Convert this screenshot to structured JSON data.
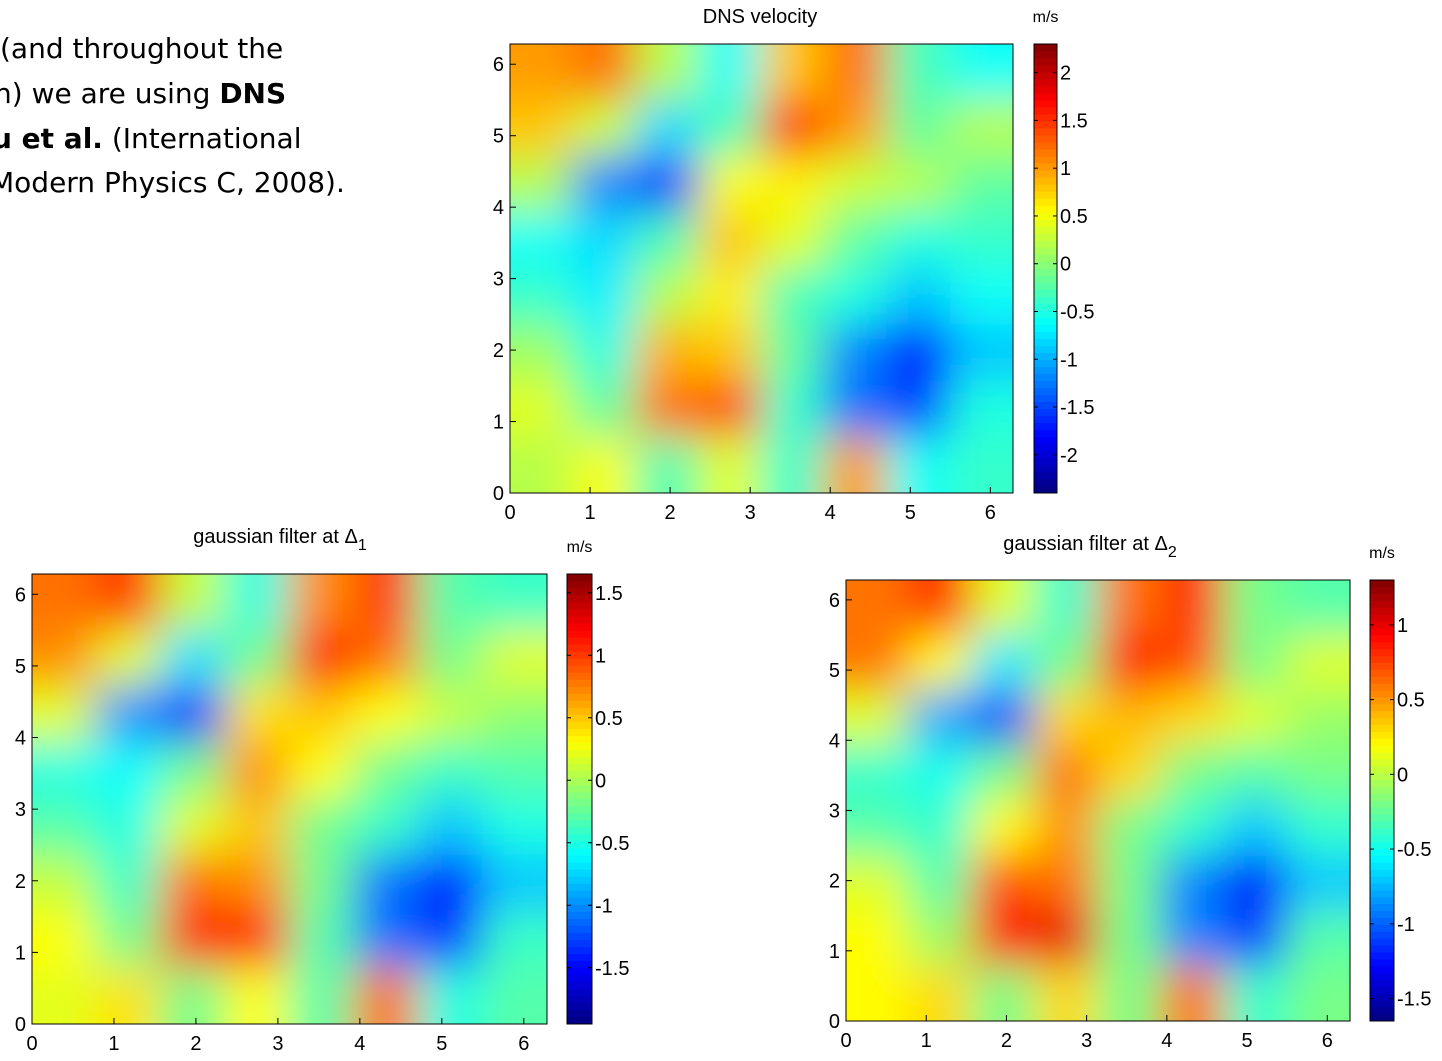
{
  "slide_text": [
    [
      {
        "text": "(and throughout the",
        "bold": false
      }
    ],
    [
      {
        "text": "n) we are using ",
        "bold": false
      },
      {
        "text": "DNS",
        "bold": true
      }
    ],
    [
      {
        "text": "u et al.",
        "bold": true
      },
      {
        "text": " (International",
        "bold": false
      }
    ],
    [
      {
        "text": "Modern Physics C, 2008).",
        "bold": false
      }
    ]
  ],
  "chart_data": [
    {
      "type": "heatmap",
      "title": "DNS velocity",
      "colorbar_label": "m/s",
      "xlim": [
        0,
        6.2832
      ],
      "ylim": [
        0,
        6.2832
      ],
      "xticks": [
        0,
        1,
        2,
        3,
        4,
        5,
        6
      ],
      "yticks": [
        0,
        1,
        2,
        3,
        4,
        5,
        6
      ],
      "clim": [
        -2.4,
        2.3
      ],
      "cticks": [
        -2,
        -1.5,
        -1,
        -0.5,
        0,
        0.5,
        1,
        1.5,
        2
      ],
      "colormap": "jet",
      "z": [
        [
          1.0,
          1.2,
          0.2,
          -0.6,
          0.8,
          1.2,
          -0.3,
          -0.6
        ],
        [
          0.8,
          0.3,
          -0.8,
          -0.3,
          1.5,
          1.0,
          -0.2,
          0.2
        ],
        [
          0.2,
          -1.2,
          -1.6,
          0.5,
          0.6,
          0.3,
          0.2,
          -0.2
        ],
        [
          -0.6,
          -0.8,
          -0.3,
          0.8,
          0.4,
          -0.2,
          -0.5,
          -0.4
        ],
        [
          -0.4,
          -0.7,
          0.2,
          0.6,
          -0.3,
          -0.5,
          -0.9,
          -0.6
        ],
        [
          0.1,
          -0.5,
          0.9,
          0.8,
          -0.2,
          -1.2,
          -1.8,
          -0.9
        ],
        [
          0.4,
          -0.2,
          1.2,
          1.4,
          -0.4,
          -1.3,
          -1.5,
          -0.5
        ],
        [
          0.2,
          0.5,
          -0.3,
          0.4,
          -0.4,
          1.0,
          -0.6,
          -0.4
        ]
      ]
    },
    {
      "type": "heatmap",
      "title": "gaussian filter at Δ",
      "title_subscript": "1",
      "colorbar_label": "m/s",
      "xlim": [
        0,
        6.2832
      ],
      "ylim": [
        0,
        6.2832
      ],
      "xticks": [
        0,
        1,
        2,
        3,
        4,
        5,
        6
      ],
      "yticks": [
        0,
        1,
        2,
        3,
        4,
        5,
        6
      ],
      "clim": [
        -1.95,
        1.65
      ],
      "cticks": [
        -1.5,
        -1,
        -0.5,
        0,
        0.5,
        1,
        1.5
      ],
      "colormap": "jet",
      "z": [
        [
          0.8,
          1.0,
          0.1,
          -0.5,
          0.7,
          1.0,
          -0.3,
          -0.4
        ],
        [
          0.7,
          0.2,
          -0.7,
          -0.2,
          1.2,
          0.8,
          -0.2,
          0.2
        ],
        [
          0.2,
          -1.0,
          -1.4,
          0.4,
          0.5,
          0.3,
          0.1,
          -0.1
        ],
        [
          -0.5,
          -0.6,
          -0.2,
          0.7,
          0.3,
          -0.2,
          -0.4,
          -0.3
        ],
        [
          -0.3,
          -0.5,
          0.2,
          0.5,
          -0.2,
          -0.4,
          -0.8,
          -0.5
        ],
        [
          0.1,
          -0.4,
          0.8,
          0.7,
          -0.2,
          -1.1,
          -1.5,
          -0.8
        ],
        [
          0.3,
          -0.2,
          1.1,
          1.2,
          -0.3,
          -1.1,
          -1.3,
          -0.4
        ],
        [
          0.2,
          0.4,
          -0.2,
          0.3,
          -0.3,
          0.8,
          -0.5,
          -0.3
        ]
      ]
    },
    {
      "type": "heatmap",
      "title": "gaussian filter at Δ",
      "title_subscript": "2",
      "colorbar_label": "m/s",
      "xlim": [
        0,
        6.2832
      ],
      "ylim": [
        0,
        6.2832
      ],
      "xticks": [
        0,
        1,
        2,
        3,
        4,
        5,
        6
      ],
      "yticks": [
        0,
        1,
        2,
        3,
        4,
        5,
        6
      ],
      "clim": [
        -1.65,
        1.3
      ],
      "cticks": [
        -1.5,
        -1,
        -0.5,
        0,
        0.5,
        1
      ],
      "colormap": "jet",
      "z": [
        [
          0.6,
          0.8,
          0.1,
          -0.4,
          0.6,
          0.8,
          -0.2,
          -0.3
        ],
        [
          0.6,
          0.2,
          -0.6,
          -0.2,
          0.9,
          0.7,
          -0.2,
          0.1
        ],
        [
          0.1,
          -0.8,
          -1.1,
          0.3,
          0.4,
          0.3,
          0.1,
          -0.1
        ],
        [
          -0.4,
          -0.5,
          -0.2,
          0.6,
          0.3,
          -0.2,
          -0.3,
          -0.2
        ],
        [
          -0.3,
          -0.4,
          0.2,
          0.5,
          -0.2,
          -0.4,
          -0.7,
          -0.4
        ],
        [
          0.1,
          -0.3,
          0.7,
          0.6,
          -0.2,
          -0.9,
          -1.3,
          -0.7
        ],
        [
          0.2,
          -0.1,
          0.9,
          1.0,
          -0.2,
          -0.9,
          -1.1,
          -0.3
        ],
        [
          0.2,
          0.3,
          -0.2,
          0.3,
          -0.2,
          0.6,
          -0.4,
          -0.2
        ]
      ]
    }
  ]
}
